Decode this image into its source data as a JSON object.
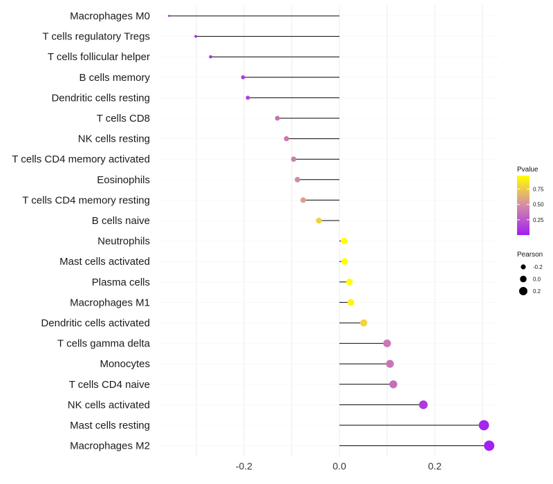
{
  "chart_data": {
    "type": "lollipop",
    "title": "",
    "xlabel": "",
    "ylabel": "",
    "xlim": [
      -0.36,
      0.32
    ],
    "grid": true,
    "x_ticks": [
      {
        "value": -0.2,
        "label": "-0.2"
      },
      {
        "value": 0.0,
        "label": "0.0"
      },
      {
        "value": 0.2,
        "label": "0.2"
      }
    ],
    "categories": [
      "Macrophages M0",
      "T cells regulatory  Tregs",
      "T cells follicular helper",
      "B cells memory",
      "Dendritic cells resting",
      "T cells CD8",
      "NK cells resting",
      "T cells CD4 memory activated",
      "Eosinophils",
      "T cells CD4 memory resting",
      "B cells naive",
      "Neutrophils",
      "Mast cells activated",
      "Plasma cells",
      "Macrophages M1",
      "Dendritic cells activated",
      "T cells gamma delta",
      "Monocytes",
      "T cells CD4 naive",
      "NK cells activated",
      "Mast cells resting",
      "Macrophages M2"
    ],
    "pearson": [
      -0.357,
      -0.301,
      -0.27,
      -0.202,
      -0.192,
      -0.13,
      -0.111,
      -0.096,
      -0.088,
      -0.076,
      -0.043,
      0.01,
      0.011,
      0.021,
      0.024,
      0.051,
      0.1,
      0.106,
      0.113,
      0.176,
      0.303,
      0.314
    ],
    "pvalue": [
      0.02,
      0.05,
      0.06,
      0.12,
      0.15,
      0.37,
      0.4,
      0.42,
      0.47,
      0.57,
      0.78,
      0.99,
      0.98,
      0.97,
      0.93,
      0.79,
      0.4,
      0.38,
      0.35,
      0.12,
      0.03,
      0.01
    ],
    "legend": {
      "color_title": "Pvalue",
      "color_breaks": [
        {
          "value": 0.75,
          "label": "0.75"
        },
        {
          "value": 0.5,
          "label": "0.50"
        },
        {
          "value": 0.25,
          "label": "0.25"
        }
      ],
      "color_range": [
        0.0,
        0.97
      ],
      "color_low": "#a020f0",
      "color_mid": "#d58ba8",
      "color_high": "#ffff00",
      "size_title": "Pearson",
      "size_breaks": [
        {
          "value": -0.2,
          "label": "-0.2"
        },
        {
          "value": 0.0,
          "label": "0.0"
        },
        {
          "value": 0.2,
          "label": "0.2"
        }
      ],
      "position": "right"
    }
  }
}
